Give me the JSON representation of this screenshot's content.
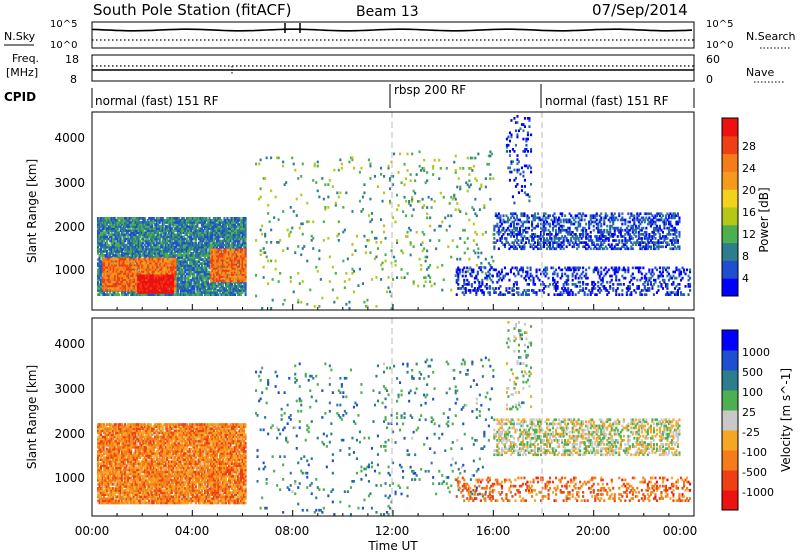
{
  "header": {
    "title": "South Pole Station (fitACF)",
    "beam": "Beam 13",
    "date": "07/Sep/2014"
  },
  "top_panel": {
    "left_label": "N.Sky",
    "right_label": "N.Search",
    "left_ticks": [
      "10^5",
      "10^0"
    ],
    "right_ticks": [
      "10^5",
      "10^0"
    ]
  },
  "freq_panel": {
    "label_line1": "Freq.",
    "label_line2": "[MHz]",
    "left_ticks": [
      "18",
      "8"
    ],
    "right_label": "Nave",
    "right_ticks": [
      "60",
      "0"
    ]
  },
  "cpid_panel": {
    "label": "CPID",
    "segments": [
      {
        "start_hour": 0,
        "text": "normal (fast) 151 RF"
      },
      {
        "start_hour": 12,
        "text": "rbsp 200 RF"
      },
      {
        "start_hour": 18,
        "text": "normal (fast) 151 RF"
      }
    ]
  },
  "x_axis": {
    "label": "Time UT",
    "ticks": [
      "00:00",
      "04:00",
      "08:00",
      "12:00",
      "16:00",
      "20:00",
      "00:00"
    ]
  },
  "chart_data": [
    {
      "type": "heatmap",
      "name": "power",
      "xlabel": "Time UT",
      "ylabel": "Slant Range [km]",
      "xlim": [
        0,
        24
      ],
      "ylim": [
        180,
        4500
      ],
      "yticks": [
        "1000",
        "2000",
        "3000",
        "4000"
      ],
      "colorbar": {
        "label": "Power [dB]",
        "ticks": [
          "28",
          "24",
          "20",
          "16",
          "12",
          "8",
          "4"
        ],
        "range": [
          0,
          30
        ],
        "colors": [
          "#0000ff",
          "#1f4fd0",
          "#2e7d8e",
          "#4caf50",
          "#b5c81a",
          "#f2d21b",
          "#f59a1c",
          "#f57c1a",
          "#ef4015",
          "#ee1111"
        ]
      },
      "regions": [
        {
          "t0": 0.2,
          "t1": 6.1,
          "r0": 500,
          "r1": 2200,
          "level": 0.25,
          "density": 0.9
        },
        {
          "t0": 0.4,
          "t1": 3.3,
          "r0": 600,
          "r1": 1300,
          "level": 0.75,
          "density": 0.95
        },
        {
          "t0": 1.8,
          "t1": 3.2,
          "r0": 550,
          "r1": 950,
          "level": 1.0,
          "density": 0.9
        },
        {
          "t0": 4.7,
          "t1": 6.1,
          "r0": 800,
          "r1": 1500,
          "level": 0.75,
          "density": 0.9
        },
        {
          "t0": 6.5,
          "t1": 12,
          "r0": 200,
          "r1": 3500,
          "level": 0.35,
          "density": 0.04
        },
        {
          "t0": 12,
          "t1": 16,
          "r0": 600,
          "r1": 3700,
          "level": 0.35,
          "density": 0.05
        },
        {
          "t0": 14.5,
          "t1": 23.8,
          "r0": 500,
          "r1": 1100,
          "level": 0.1,
          "density": 0.3
        },
        {
          "t0": 16,
          "t1": 23.4,
          "r0": 1500,
          "r1": 2300,
          "level": 0.15,
          "density": 0.45
        },
        {
          "t0": 16.5,
          "t1": 17.5,
          "r0": 2500,
          "r1": 4400,
          "level": 0.1,
          "density": 0.12
        }
      ]
    },
    {
      "type": "heatmap",
      "name": "velocity",
      "xlabel": "Time UT",
      "ylabel": "Slant Range [km]",
      "xlim": [
        0,
        24
      ],
      "ylim": [
        180,
        4500
      ],
      "yticks": [
        "1000",
        "2000",
        "3000",
        "4000"
      ],
      "colorbar": {
        "label": "Velocity [m s^-1]",
        "ticks": [
          "1000",
          "500",
          "100",
          "25",
          "-25",
          "-100",
          "-500",
          "-1000"
        ],
        "colors": [
          "#0000ff",
          "#1f4fd0",
          "#2e7d8e",
          "#4caf50",
          "#c8c8c8",
          "#f5a623",
          "#f57c1a",
          "#ef4015",
          "#ee1111"
        ]
      },
      "regions": [
        {
          "t0": 0.2,
          "t1": 6.1,
          "r0": 450,
          "r1": 2200,
          "level": 0.7,
          "density": 0.9
        },
        {
          "t0": 6.5,
          "t1": 12,
          "r0": 200,
          "r1": 3500,
          "level": 0.3,
          "density": 0.04
        },
        {
          "t0": 12,
          "t1": 16,
          "r0": 600,
          "r1": 3700,
          "level": 0.3,
          "density": 0.05
        },
        {
          "t0": 14.5,
          "t1": 23.8,
          "r0": 500,
          "r1": 1000,
          "level": 0.75,
          "density": 0.25
        },
        {
          "t0": 16,
          "t1": 23.4,
          "r0": 1500,
          "r1": 2300,
          "level": 0.5,
          "density": 0.45
        },
        {
          "t0": 16.5,
          "t1": 17.5,
          "r0": 2500,
          "r1": 4400,
          "level": 0.45,
          "density": 0.12
        }
      ]
    }
  ]
}
